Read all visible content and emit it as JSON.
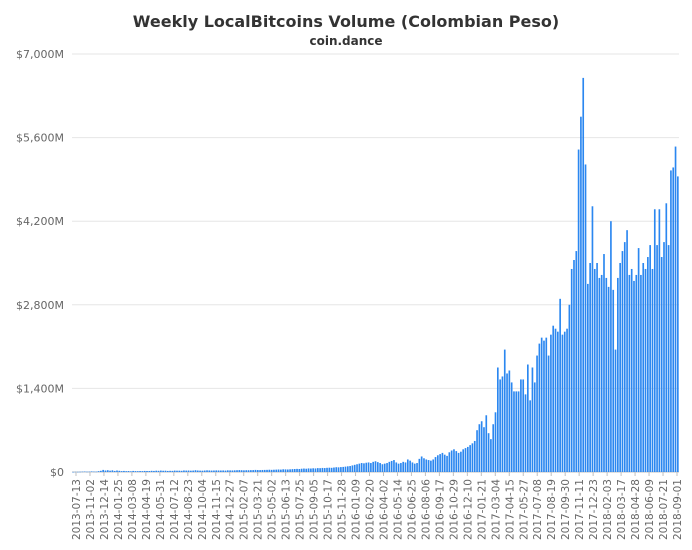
{
  "chart_data": {
    "type": "bar",
    "title": "Weekly LocalBitcoins Volume (Colombian Peso)",
    "subtitle": "coin.dance",
    "xlabel": "",
    "ylabel": "",
    "ylim": [
      0,
      7000
    ],
    "y_unit": "M COP",
    "y_ticks": [
      "$0",
      "$1,400M",
      "$2,800M",
      "$4,200M",
      "$5,600M",
      "$7,000M"
    ],
    "x_tick_labels": [
      "2013-07-13",
      "2013-11-02",
      "2013-12-14",
      "2014-01-25",
      "2014-03-08",
      "2014-04-19",
      "2014-05-31",
      "2014-07-12",
      "2014-08-23",
      "2014-10-04",
      "2014-11-15",
      "2014-12-27",
      "2015-02-07",
      "2015-03-21",
      "2015-05-02",
      "2015-06-13",
      "2015-07-25",
      "2015-09-05",
      "2015-10-17",
      "2015-11-28",
      "2016-01-09",
      "2016-02-20",
      "2016-04-02",
      "2016-05-14",
      "2016-06-25",
      "2016-08-06",
      "2016-09-17",
      "2016-10-29",
      "2016-12-10",
      "2017-01-21",
      "2017-03-04",
      "2017-04-15",
      "2017-05-27",
      "2017-07-08",
      "2017-08-19",
      "2017-09-30",
      "2017-11-11",
      "2017-12-23",
      "2018-02-03",
      "2018-03-17",
      "2018-04-28",
      "2018-06-09",
      "2018-07-21",
      "2018-09-01"
    ],
    "color": "#2b87f0",
    "grid": true,
    "legend": "none",
    "values": [
      2,
      3,
      3,
      4,
      6,
      8,
      5,
      6,
      10,
      7,
      6,
      14,
      20,
      35,
      25,
      30,
      22,
      28,
      18,
      25,
      20,
      15,
      18,
      14,
      16,
      12,
      18,
      15,
      14,
      16,
      15,
      18,
      17,
      16,
      20,
      18,
      22,
      20,
      24,
      21,
      22,
      18,
      20,
      19,
      24,
      22,
      22,
      20,
      26,
      24,
      25,
      22,
      24,
      30,
      25,
      23,
      22,
      25,
      28,
      26,
      24,
      25,
      27,
      26,
      25,
      26,
      24,
      28,
      27,
      26,
      28,
      30,
      32,
      30,
      28,
      30,
      30,
      31,
      32,
      35,
      33,
      32,
      34,
      35,
      36,
      38,
      36,
      38,
      40,
      42,
      40,
      45,
      44,
      42,
      45,
      48,
      50,
      52,
      50,
      55,
      58,
      55,
      60,
      58,
      62,
      60,
      65,
      64,
      68,
      66,
      70,
      72,
      70,
      75,
      80,
      78,
      82,
      85,
      90,
      95,
      100,
      110,
      120,
      130,
      140,
      150,
      145,
      155,
      160,
      150,
      170,
      180,
      165,
      150,
      130,
      140,
      150,
      170,
      185,
      200,
      160,
      140,
      150,
      170,
      160,
      210,
      190,
      160,
      140,
      150,
      220,
      260,
      230,
      210,
      200,
      190,
      210,
      250,
      280,
      300,
      320,
      290,
      270,
      330,
      360,
      380,
      350,
      320,
      340,
      380,
      400,
      420,
      450,
      480,
      520,
      700,
      800,
      850,
      750,
      950,
      650,
      550,
      800,
      1000,
      1750,
      1550,
      1600,
      2050,
      1650,
      1700,
      1500,
      1350,
      1350,
      1350,
      1550,
      1550,
      1300,
      1800,
      1200,
      1750,
      1500,
      1950,
      2150,
      2250,
      2200,
      2250,
      1950,
      2300,
      2450,
      2400,
      2350,
      2900,
      2300,
      2350,
      2400,
      2800,
      3400,
      3550,
      3700,
      5400,
      5950,
      6600,
      5150,
      3150,
      3500,
      4450,
      3400,
      3500,
      3250,
      3300,
      3650,
      3250,
      3100,
      4200,
      3050,
      2050,
      3250,
      3500,
      3700,
      3850,
      4050,
      3300,
      3400,
      3200,
      3300,
      3750,
      3300,
      3500,
      3400,
      3600,
      3800,
      3400,
      4400,
      3800,
      4400,
      3600,
      3850,
      4500,
      3800,
      5050,
      5100,
      5450,
      4950
    ]
  }
}
